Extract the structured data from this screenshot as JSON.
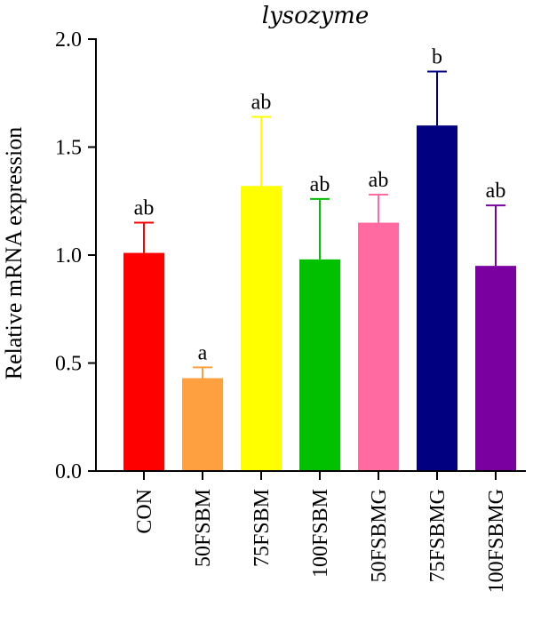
{
  "chart_data": {
    "type": "bar",
    "title": "lysozyme",
    "xlabel": "",
    "ylabel": "Relative mRNA expression",
    "ylim": [
      0,
      2.0
    ],
    "yticks": [
      "0.0",
      "0.5",
      "1.0",
      "1.5",
      "2.0"
    ],
    "grid": false,
    "legend": "none",
    "categories": [
      "CON",
      "50FSBM",
      "75FSBM",
      "100FSBM",
      "50FSBMG",
      "75FSBMG",
      "100FSBMG"
    ],
    "values": [
      1.01,
      0.43,
      1.32,
      0.98,
      1.15,
      1.6,
      0.95
    ],
    "error_upper": [
      0.14,
      0.05,
      0.32,
      0.28,
      0.13,
      0.25,
      0.28
    ],
    "significance": [
      "ab",
      "a",
      "ab",
      "ab",
      "ab",
      "b",
      "ab"
    ],
    "colors": [
      "#ff0000",
      "#ffa040",
      "#ffff00",
      "#00c000",
      "#ff6aa0",
      "#000080",
      "#7a00a0"
    ]
  }
}
